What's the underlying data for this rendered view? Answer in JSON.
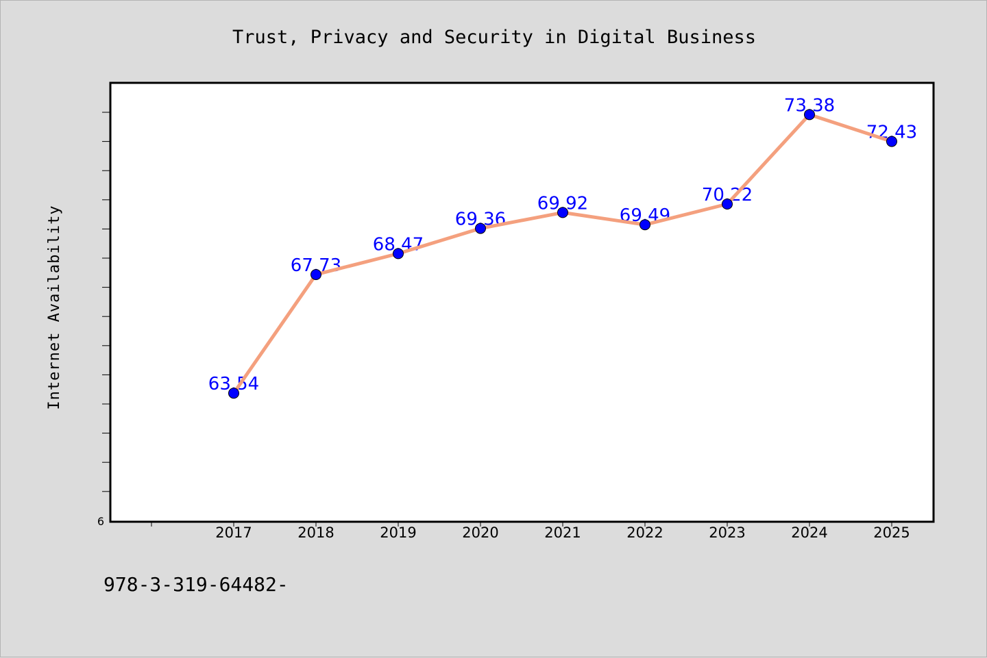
{
  "colors": {
    "line": "#f4a07e",
    "marker": "#0000ff",
    "label": "#0000ff",
    "plot_bg": "#ffffff",
    "page_bg": "#dcdcdc"
  },
  "footer": {
    "text": "978-3-319-64482-"
  },
  "chart_data": {
    "type": "line",
    "title": "Trust, Privacy and Security in Digital Business",
    "xlabel": "",
    "ylabel": "Internet Availability",
    "categories": [
      "2017",
      "2018",
      "2019",
      "2020",
      "2021",
      "2022",
      "2023",
      "2024",
      "2025"
    ],
    "series": [
      {
        "values": [
          63.54,
          67.73,
          68.47,
          69.36,
          69.92,
          69.49,
          70.22,
          73.38,
          72.43
        ],
        "data_labels": [
          "63.54",
          "67.73",
          "68.47",
          "69.36",
          "69.92",
          "69.49",
          "70.22",
          "73.38",
          "72.43"
        ]
      }
    ],
    "ylim": [
      59,
      74.5
    ],
    "ytick_labels": [
      "6"
    ],
    "grid": false,
    "legend": "none"
  }
}
